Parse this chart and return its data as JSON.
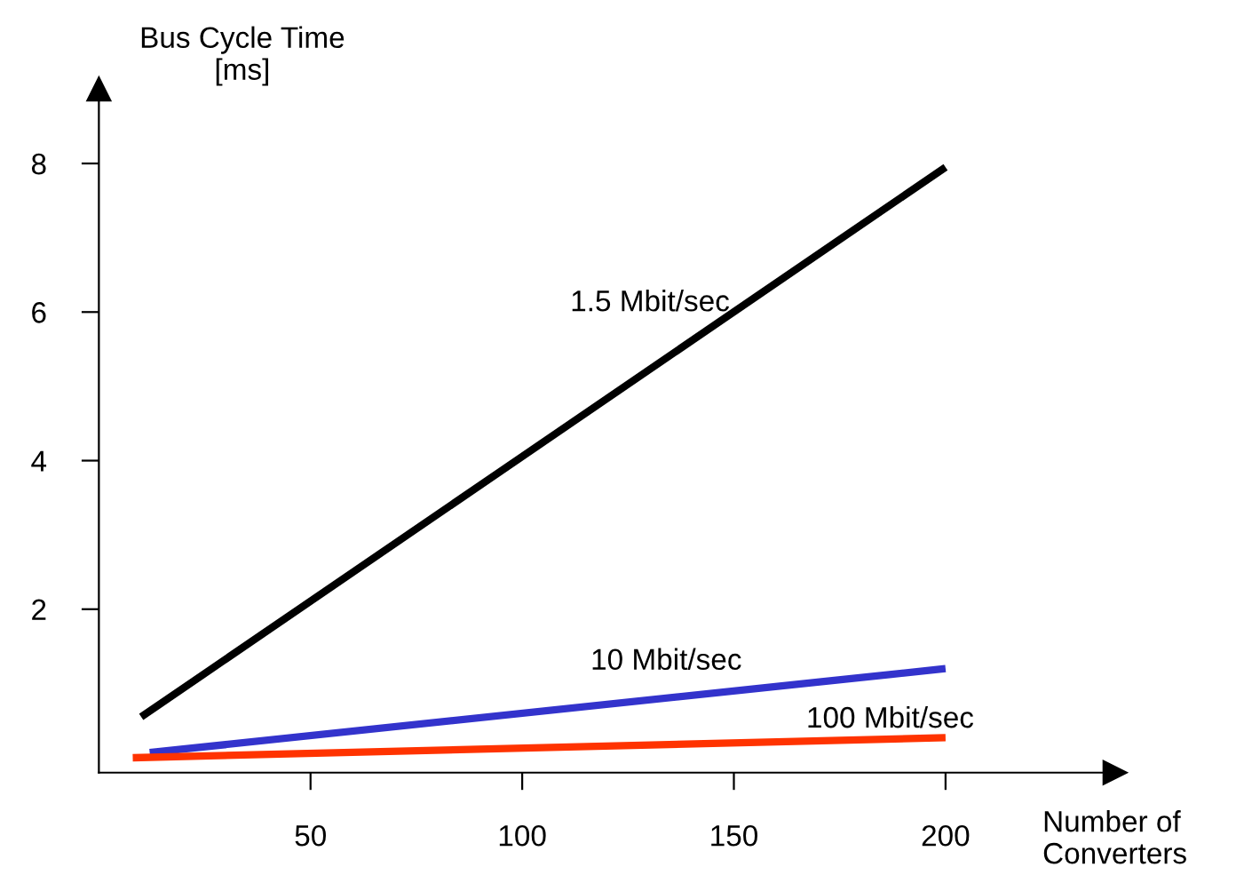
{
  "chart_data": {
    "type": "line",
    "ylabel": "Bus Cycle Time\n[ms]",
    "xlabel": "Number of\nConverters",
    "xlim": [
      0,
      240
    ],
    "ylim": [
      -0.2,
      9
    ],
    "xticks": [
      50,
      100,
      150,
      200
    ],
    "yticks": [
      2,
      4,
      6,
      8
    ],
    "grid": false,
    "legend": false,
    "marker": "none",
    "line_style": "solid",
    "series": [
      {
        "name": "1.5 Mbit/sec",
        "color": "#000000",
        "x": [
          10,
          200
        ],
        "values": [
          0.55,
          7.95
        ]
      },
      {
        "name": "10 Mbit/sec",
        "color": "#3333cc",
        "x": [
          12,
          200
        ],
        "values": [
          0.07,
          1.2
        ]
      },
      {
        "name": "100 Mbit/sec",
        "color": "#ff3300",
        "x": [
          8,
          200
        ],
        "values": [
          0.0,
          0.27
        ]
      }
    ]
  }
}
